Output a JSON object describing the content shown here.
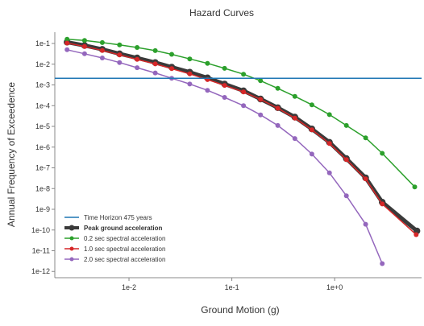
{
  "chart_data": {
    "type": "line",
    "title": "Hazard Curves",
    "xlabel": "Ground Motion (g)",
    "ylabel": "Annual Frequency of Exceedence",
    "x_scale": "log",
    "y_scale": "log",
    "xlim": [
      0.0019,
      7.0
    ],
    "ylim": [
      5e-13,
      0.35
    ],
    "x_ticks": [
      {
        "value": 0.01,
        "label": "1e-2"
      },
      {
        "value": 0.1,
        "label": "1e-1"
      },
      {
        "value": 1,
        "label": "1e+0"
      }
    ],
    "y_ticks": [
      {
        "value": 0.1,
        "label": "1e-1"
      },
      {
        "value": 0.01,
        "label": "1e-2"
      },
      {
        "value": 0.001,
        "label": "1e-3"
      },
      {
        "value": 0.0001,
        "label": "1e-4"
      },
      {
        "value": 1e-05,
        "label": "1e-5"
      },
      {
        "value": 1e-06,
        "label": "1e-6"
      },
      {
        "value": 1e-07,
        "label": "1e-7"
      },
      {
        "value": 1e-08,
        "label": "1e-8"
      },
      {
        "value": 1e-09,
        "label": "1e-9"
      },
      {
        "value": 1e-10,
        "label": "1e-10"
      },
      {
        "value": 1e-11,
        "label": "1e-11"
      },
      {
        "value": 1e-12,
        "label": "1e-12"
      }
    ],
    "grid": false,
    "legend_position": "bottom-left",
    "time_horizon": {
      "name": "Time Horizon 475 years",
      "y": 0.0021,
      "color": "#1f77b4"
    },
    "x": [
      0.0025,
      0.0037,
      0.0055,
      0.0081,
      0.012,
      0.018,
      0.026,
      0.039,
      0.058,
      0.085,
      0.13,
      0.19,
      0.28,
      0.41,
      0.6,
      0.89,
      1.3,
      2.0,
      2.9,
      4.3
    ],
    "series": [
      {
        "name": "Peak ground acceleration",
        "color": "#3a3a3a",
        "bold": true,
        "values": [
          0.115,
          0.08,
          0.052,
          0.032,
          0.02,
          0.012,
          0.0072,
          0.0041,
          0.0022,
          0.0011,
          0.00052,
          0.00021,
          8e-05,
          2.8e-05,
          7.5e-06,
          1.7e-06,
          2.8e-07,
          3.3e-08,
          2.2e-09,
          9e-11
        ],
        "x_override": [
          0.0025,
          0.0037,
          0.0055,
          0.0081,
          0.012,
          0.018,
          0.026,
          0.039,
          0.058,
          0.085,
          0.13,
          0.19,
          0.28,
          0.41,
          0.6,
          0.89,
          1.3,
          2.0,
          2.9,
          6.3
        ]
      },
      {
        "name": "0.2 sec spectral acceleration",
        "color": "#2ca02c",
        "bold": false,
        "values": [
          0.16,
          0.14,
          0.11,
          0.085,
          0.064,
          0.045,
          0.03,
          0.018,
          0.011,
          0.0063,
          0.0033,
          0.0016,
          0.00068,
          0.00028,
          0.00011,
          3.7e-05,
          1.1e-05,
          2.8e-06,
          5e-07,
          1.2e-08
        ],
        "x_override": [
          0.0025,
          0.0037,
          0.0055,
          0.0081,
          0.012,
          0.018,
          0.026,
          0.039,
          0.058,
          0.085,
          0.13,
          0.19,
          0.28,
          0.41,
          0.6,
          0.89,
          1.3,
          2.0,
          2.9,
          6.0
        ]
      },
      {
        "name": "1.0 sec spectral acceleration",
        "color": "#d62728",
        "bold": false,
        "values": [
          0.105,
          0.072,
          0.046,
          0.028,
          0.017,
          0.0103,
          0.0061,
          0.0034,
          0.0018,
          0.00095,
          0.00046,
          0.0002,
          7.5e-05,
          2.5e-05,
          6.8e-06,
          1.5e-06,
          2.5e-07,
          2.9e-08,
          1.8e-09,
          6e-11
        ],
        "x_override": [
          0.0025,
          0.0037,
          0.0055,
          0.0081,
          0.012,
          0.018,
          0.026,
          0.039,
          0.058,
          0.085,
          0.13,
          0.19,
          0.28,
          0.41,
          0.6,
          0.89,
          1.3,
          2.0,
          2.9,
          6.2
        ]
      },
      {
        "name": "2.0 sec spectral acceleration",
        "color": "#9467bd",
        "bold": false,
        "values": [
          0.05,
          0.032,
          0.02,
          0.012,
          0.0068,
          0.0038,
          0.0021,
          0.0011,
          0.00055,
          0.00025,
          0.0001,
          3.6e-05,
          1.1e-05,
          2.6e-06,
          4.6e-07,
          5.7e-08,
          4.5e-09,
          1.9e-10,
          2.4e-12,
          0
        ],
        "x_override": [
          0.0025,
          0.0037,
          0.0055,
          0.0081,
          0.012,
          0.018,
          0.026,
          0.039,
          0.058,
          0.085,
          0.13,
          0.19,
          0.28,
          0.41,
          0.6,
          0.89,
          1.3,
          2.0,
          2.9,
          0
        ]
      }
    ]
  }
}
